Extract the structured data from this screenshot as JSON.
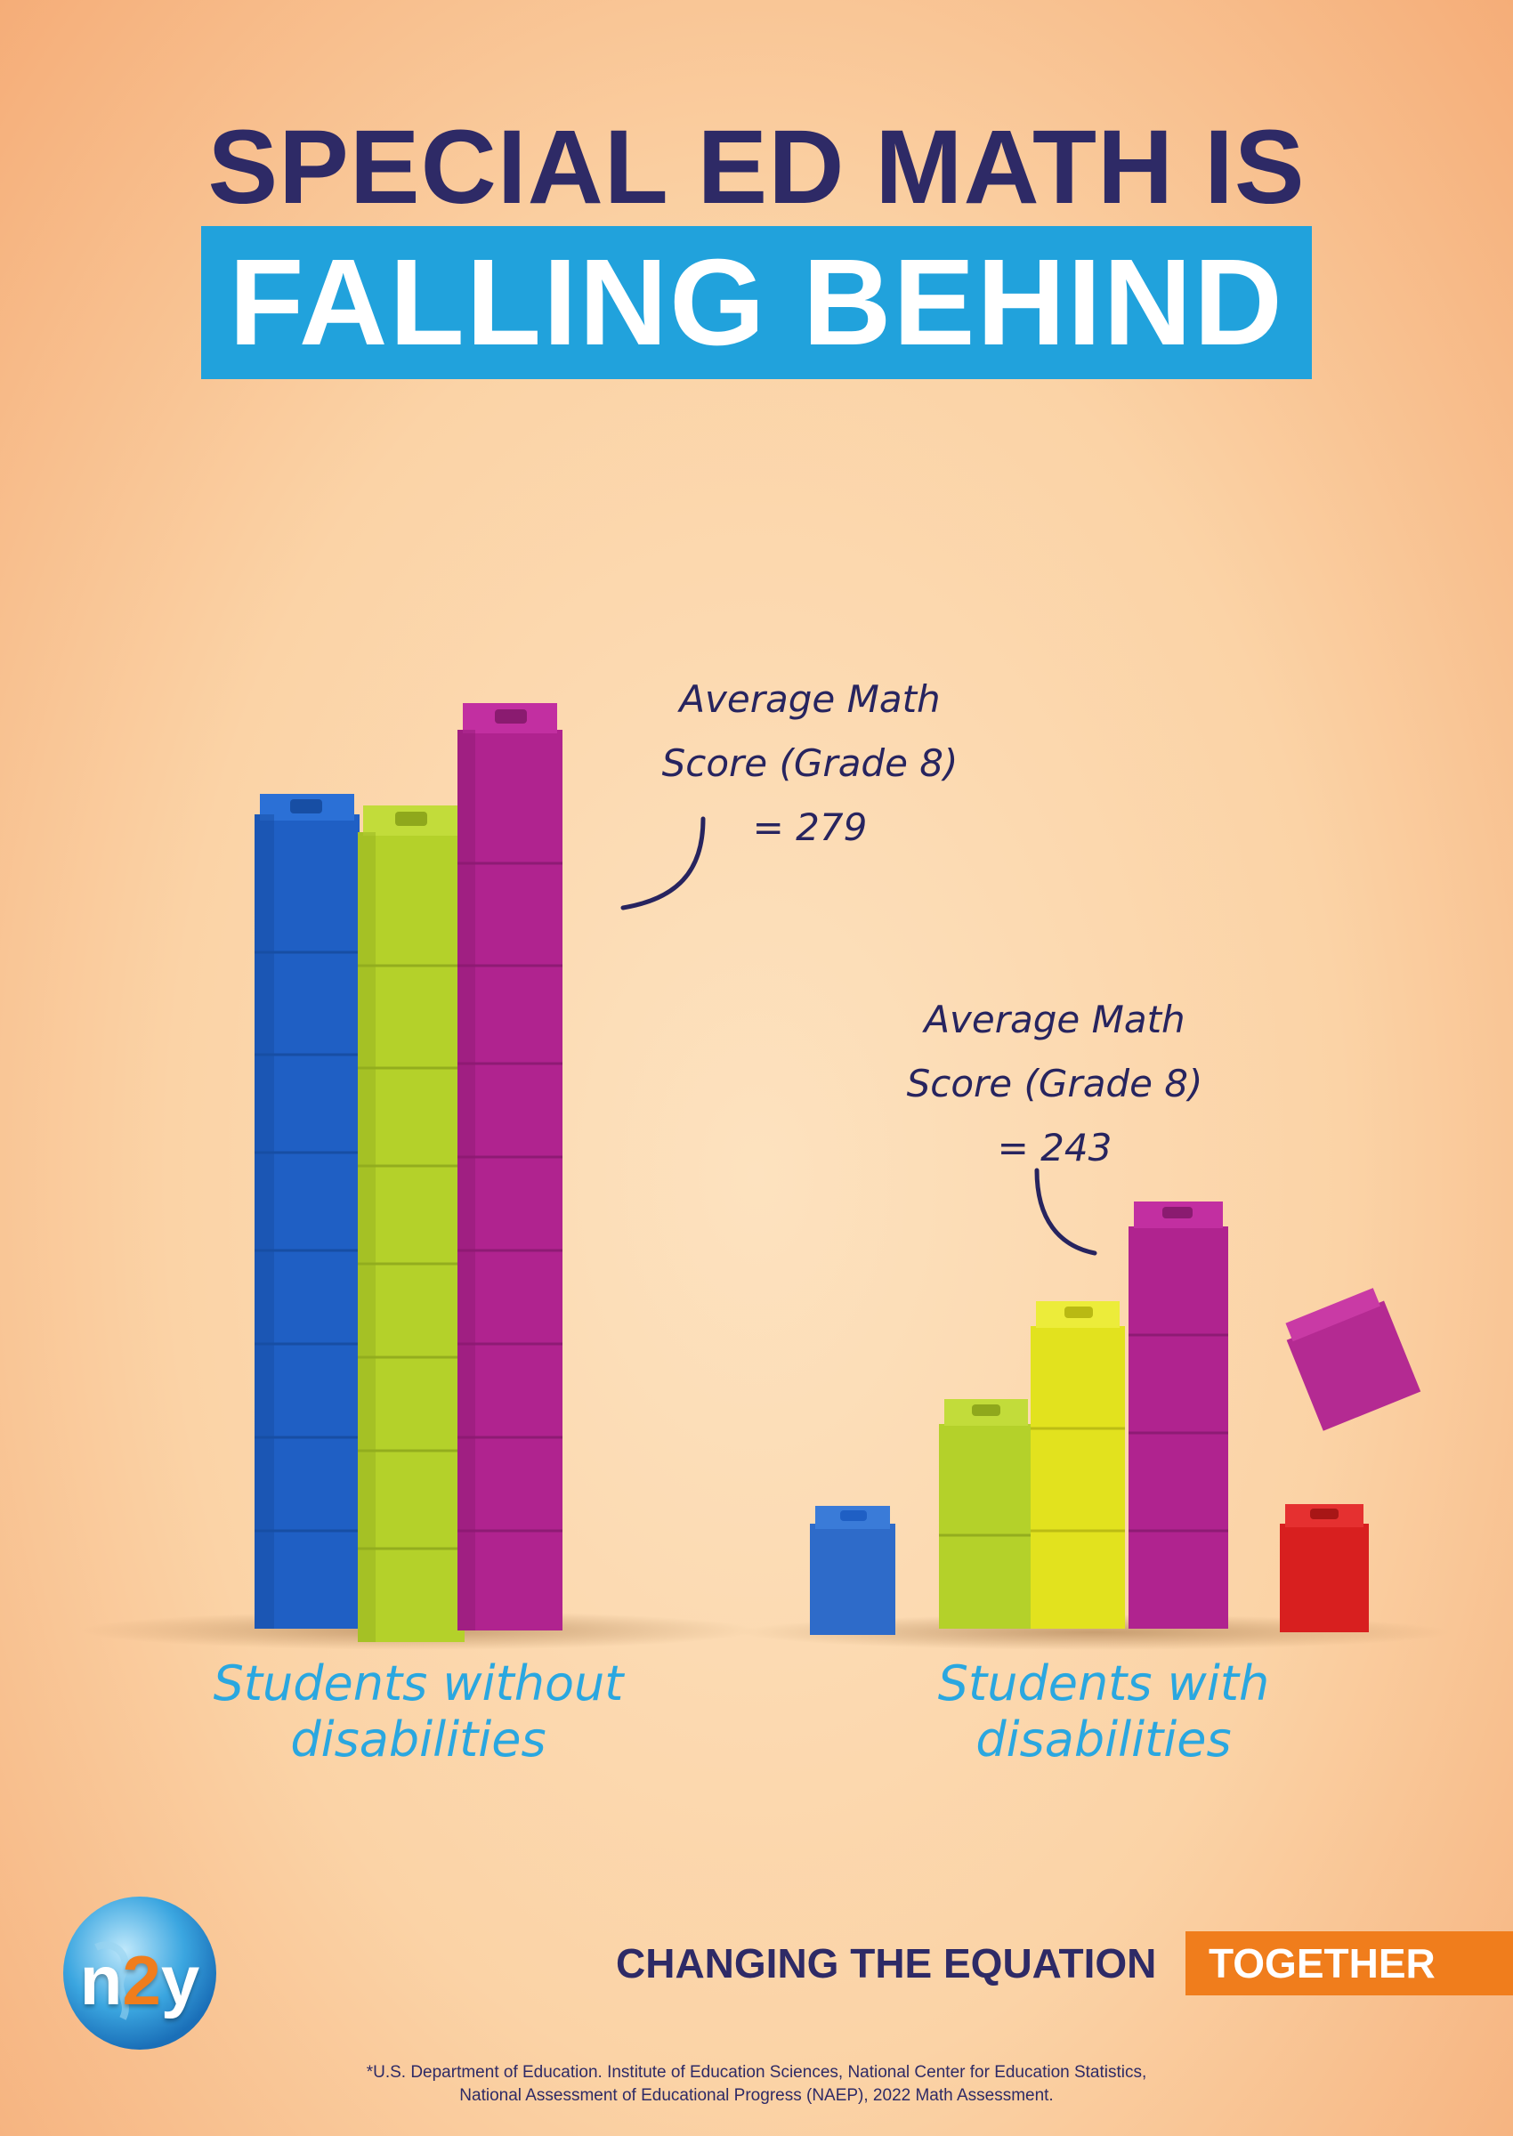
{
  "headline": {
    "line1": "SPECIAL ED MATH IS",
    "line2": "FALLING BEHIND"
  },
  "annotations": {
    "without": "Average Math\nScore (Grade 8)\n= 279",
    "with": "Average Math\nScore (Grade 8)\n= 243"
  },
  "groups": {
    "without": "Students without disabilities",
    "with": "Students with disabilities"
  },
  "footer": {
    "tagline_part1": "CHANGING THE EQUATION",
    "tagline_part2": "TOGETHER",
    "source": "*U.S. Department of Education. Institute of Education Sciences, National Center for Education Statistics,\nNational Assessment of Educational Progress (NAEP), 2022 Math Assessment."
  },
  "logo": {
    "part1": "n",
    "part2": "2",
    "part3": "y"
  },
  "colors": {
    "navy": "#2e2a66",
    "accent_blue": "#21a2dc",
    "orange": "#f07d1c",
    "cube_blue": "#1f5fc4",
    "cube_green": "#b4d12a",
    "cube_yellow": "#e2e21e",
    "cube_magenta": "#b0238f",
    "cube_red": "#d81f1f"
  },
  "icons": [
    "globe-logo-icon",
    "arrow-curve-icon"
  ]
}
